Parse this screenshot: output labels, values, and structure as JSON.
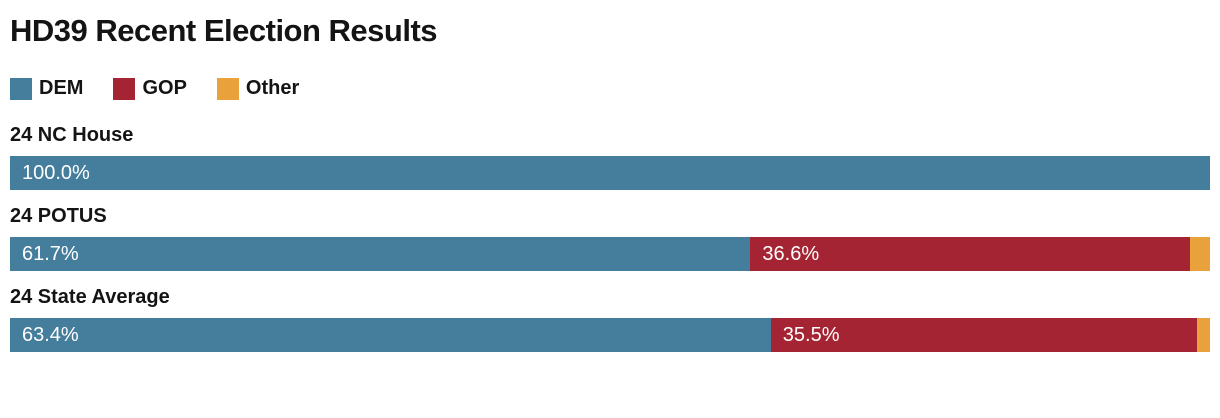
{
  "chart_data": {
    "type": "bar",
    "orientation": "horizontal-stacked",
    "title": "HD39 Recent Election Results",
    "xlabel": "",
    "ylabel": "",
    "xlim": [
      0,
      100
    ],
    "grid": false,
    "legend_position": "top-left",
    "colors": {
      "DEM": "#457d9c",
      "GOP": "#a52433",
      "Other": "#e9a13c"
    },
    "legend": [
      {
        "key": "DEM",
        "label": "DEM"
      },
      {
        "key": "GOP",
        "label": "GOP"
      },
      {
        "key": "Other",
        "label": "Other"
      }
    ],
    "rows": [
      {
        "label": "24 NC House",
        "segments": [
          {
            "party": "DEM",
            "value": 100.0,
            "text": "100.0%"
          }
        ]
      },
      {
        "label": "24 POTUS",
        "segments": [
          {
            "party": "DEM",
            "value": 61.7,
            "text": "61.7%"
          },
          {
            "party": "GOP",
            "value": 36.6,
            "text": "36.6%"
          },
          {
            "party": "Other",
            "value": 1.7,
            "text": ""
          }
        ]
      },
      {
        "label": "24 State Average",
        "segments": [
          {
            "party": "DEM",
            "value": 63.4,
            "text": "63.4%"
          },
          {
            "party": "GOP",
            "value": 35.5,
            "text": "35.5%"
          },
          {
            "party": "Other",
            "value": 1.1,
            "text": ""
          }
        ]
      }
    ]
  }
}
